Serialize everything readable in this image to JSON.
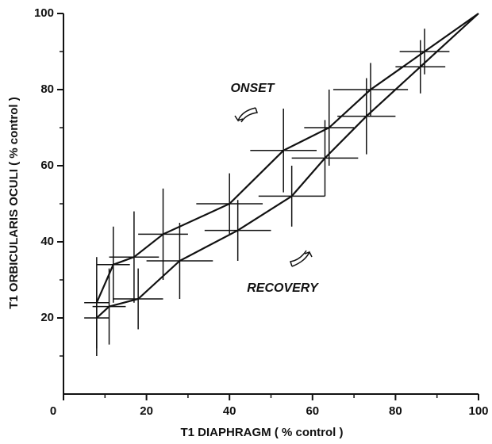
{
  "chart_data": {
    "type": "line",
    "xlabel": "T1 DIAPHRAGM ( % control )",
    "ylabel": "T1 ORBICULARIS OCULI ( % control )",
    "xlim": [
      0,
      100
    ],
    "ylim": [
      0,
      100
    ],
    "xticks": [
      0,
      20,
      40,
      60,
      80,
      100
    ],
    "yticks": [
      20,
      40,
      60,
      80,
      100
    ],
    "xminorticks": [
      10,
      30,
      50,
      70,
      90
    ],
    "yminorticks": [
      10,
      30,
      50,
      70,
      90
    ],
    "series": [
      {
        "name": "ONSET",
        "color": "#111111",
        "x": [
          8,
          12,
          17,
          24,
          40,
          53,
          64,
          74,
          87,
          100
        ],
        "values": [
          24,
          34,
          36,
          42,
          50,
          64,
          70,
          80,
          90,
          100
        ],
        "xerr": [
          3,
          4,
          6,
          6,
          8,
          8,
          6,
          9,
          6,
          0
        ],
        "yerr": [
          12,
          10,
          12,
          12,
          8,
          11,
          10,
          7,
          6,
          0
        ]
      },
      {
        "name": "RECOVERY",
        "color": "#111111",
        "x": [
          8,
          11,
          18,
          28,
          42,
          55,
          63,
          73,
          86,
          100
        ],
        "values": [
          20,
          23,
          25,
          35,
          43,
          52,
          62,
          73,
          86,
          100
        ],
        "xerr": [
          3,
          4,
          6,
          8,
          8,
          8,
          8,
          7,
          6,
          0
        ],
        "yerr": [
          10,
          10,
          8,
          10,
          8,
          8,
          10,
          10,
          7,
          0
        ]
      }
    ]
  }
}
